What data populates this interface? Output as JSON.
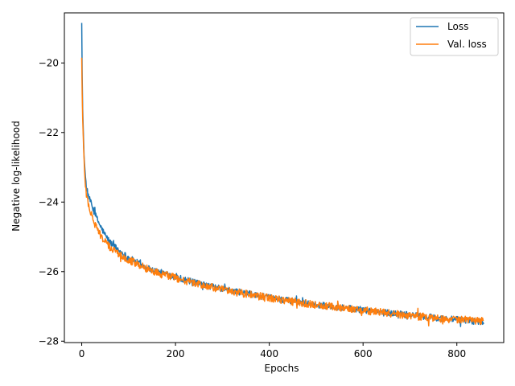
{
  "chart_data": {
    "type": "line",
    "title": "",
    "xlabel": "Epochs",
    "ylabel": "Negative log-likelihood",
    "xlim": [
      -37,
      900
    ],
    "ylim": [
      -28.04,
      -18.56
    ],
    "x_ticks": [
      0,
      200,
      400,
      600,
      800
    ],
    "y_ticks": [
      -28,
      -26,
      -24,
      -22,
      -20
    ],
    "x_tick_labels": [
      "0",
      "200",
      "400",
      "600",
      "800"
    ],
    "y_tick_labels": [
      "−28",
      "−26",
      "−24",
      "−22",
      "−20"
    ],
    "grid": false,
    "legend": {
      "position": "top-right"
    },
    "x_max_epoch": 857,
    "series": [
      {
        "name": "Loss",
        "color": "#1f77b4",
        "key_points": [
          [
            0,
            -18.85
          ],
          [
            1,
            -20.4
          ],
          [
            2,
            -21.3
          ],
          [
            4,
            -22.3
          ],
          [
            6,
            -22.9
          ],
          [
            8,
            -23.3
          ],
          [
            10,
            -23.6
          ],
          [
            15,
            -23.85
          ],
          [
            20,
            -24.05
          ],
          [
            30,
            -24.4
          ],
          [
            40,
            -24.7
          ],
          [
            50,
            -24.95
          ],
          [
            60,
            -25.15
          ],
          [
            80,
            -25.4
          ],
          [
            100,
            -25.6
          ],
          [
            120,
            -25.75
          ],
          [
            150,
            -25.95
          ],
          [
            200,
            -26.15
          ],
          [
            250,
            -26.35
          ],
          [
            300,
            -26.5
          ],
          [
            350,
            -26.62
          ],
          [
            400,
            -26.75
          ],
          [
            450,
            -26.85
          ],
          [
            500,
            -26.95
          ],
          [
            550,
            -27.02
          ],
          [
            600,
            -27.1
          ],
          [
            650,
            -27.18
          ],
          [
            700,
            -27.25
          ],
          [
            750,
            -27.32
          ],
          [
            800,
            -27.38
          ],
          [
            857,
            -27.45
          ]
        ]
      },
      {
        "name": "Val. loss",
        "color": "#ff7f0e",
        "key_points": [
          [
            0,
            -19.85
          ],
          [
            1,
            -20.9
          ],
          [
            2,
            -21.6
          ],
          [
            4,
            -22.5
          ],
          [
            6,
            -23.1
          ],
          [
            8,
            -23.5
          ],
          [
            10,
            -23.8
          ],
          [
            15,
            -24.1
          ],
          [
            20,
            -24.35
          ],
          [
            30,
            -24.7
          ],
          [
            40,
            -24.95
          ],
          [
            50,
            -25.15
          ],
          [
            60,
            -25.3
          ],
          [
            80,
            -25.5
          ],
          [
            100,
            -25.65
          ],
          [
            120,
            -25.8
          ],
          [
            150,
            -25.98
          ],
          [
            200,
            -26.18
          ],
          [
            250,
            -26.37
          ],
          [
            300,
            -26.52
          ],
          [
            350,
            -26.64
          ],
          [
            400,
            -26.76
          ],
          [
            450,
            -26.86
          ],
          [
            500,
            -26.96
          ],
          [
            550,
            -27.03
          ],
          [
            600,
            -27.11
          ],
          [
            650,
            -27.19
          ],
          [
            700,
            -27.26
          ],
          [
            750,
            -27.33
          ],
          [
            800,
            -27.38
          ],
          [
            857,
            -27.42
          ]
        ]
      }
    ]
  }
}
